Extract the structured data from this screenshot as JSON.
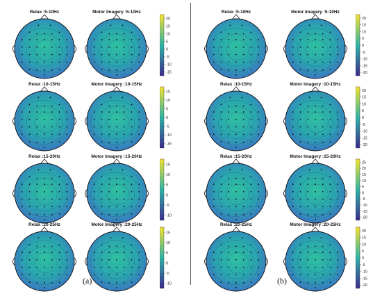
{
  "figure": {
    "panels": [
      {
        "label": "(a)",
        "plots": [
          {
            "title": "Relax :5-10Hz"
          },
          {
            "title": "Motor Imagery :5-10Hz"
          },
          {
            "title": "Relax :10-15Hz"
          },
          {
            "title": "Motor Imagery :10-15Hz"
          },
          {
            "title": "Relax :15-20Hz"
          },
          {
            "title": "Motor Imagery :15-20Hz"
          },
          {
            "title": "Relax :20-25Hz"
          },
          {
            "title": "Motor Imagery :20-25Hz"
          }
        ]
      },
      {
        "label": "(b)",
        "plots": [
          {
            "title": "Relax :5-10Hz"
          },
          {
            "title": "Motor Imagery :5-10Hz"
          },
          {
            "title": "Relax :10-15Hz"
          },
          {
            "title": "Motor Imagery :10-15Hz"
          },
          {
            "title": "Relax :15-20Hz"
          },
          {
            "title": "Motor Imagery :15-20Hz"
          },
          {
            "title": "Relax :20-25Hz"
          },
          {
            "title": "Motor Imagery :20-25Hz"
          }
        ]
      }
    ],
    "colorbars": [
      {
        "ticks": [
          "20",
          "15",
          "10",
          "5",
          "0",
          "-5",
          "-10",
          "-15"
        ]
      },
      {
        "ticks": [
          "15",
          "10",
          "5",
          "0",
          "-5",
          "-10",
          "-15"
        ]
      },
      {
        "ticks": [
          "15",
          "10",
          "5",
          "0",
          "-5",
          "-10"
        ]
      },
      {
        "ticks": [
          "15",
          "10",
          "5",
          "0",
          "-5",
          "-10"
        ]
      },
      {
        "ticks": [
          "20",
          "15",
          "10",
          "5",
          "0",
          "-5",
          "-10",
          "-15",
          "-20"
        ]
      },
      {
        "ticks": [
          "20",
          "15",
          "10",
          "5",
          "0",
          "-5",
          "-10",
          "-15",
          "-20"
        ]
      },
      {
        "ticks": [
          "25",
          "20",
          "15",
          "10",
          "5",
          "0",
          "-5",
          "-10",
          "-15",
          "-20"
        ]
      },
      {
        "ticks": [
          "20",
          "15",
          "10",
          "5",
          "0",
          "-5",
          "-10",
          "-15",
          "-20"
        ]
      }
    ],
    "colors": {
      "low": "#3b2a8f",
      "mid": "#2fb3a6",
      "high": "#f5e330",
      "divider": "#555555"
    }
  }
}
